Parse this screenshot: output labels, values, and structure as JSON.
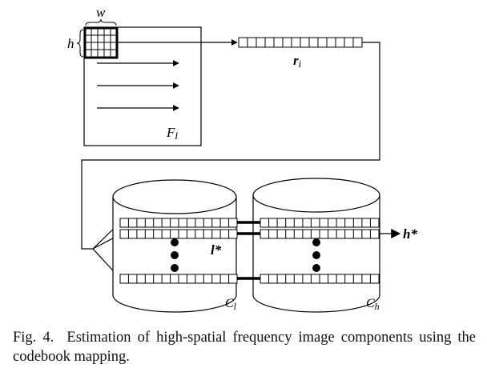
{
  "figure": {
    "labels": {
      "w": "w",
      "h": "h",
      "fl": "F",
      "fl_sub": "l",
      "r": "r",
      "r_sub": "i",
      "lstar": "l*",
      "hstar": "h*",
      "cl": "C",
      "cl_sub": "l",
      "ch": "C",
      "ch_sub": "h"
    },
    "codewords_visible_per_codebook": 3,
    "vector_cells": 14
  },
  "caption": {
    "label": "Fig. 4.",
    "text": "Estimation of high-spatial frequency image components using the codebook mapping."
  }
}
